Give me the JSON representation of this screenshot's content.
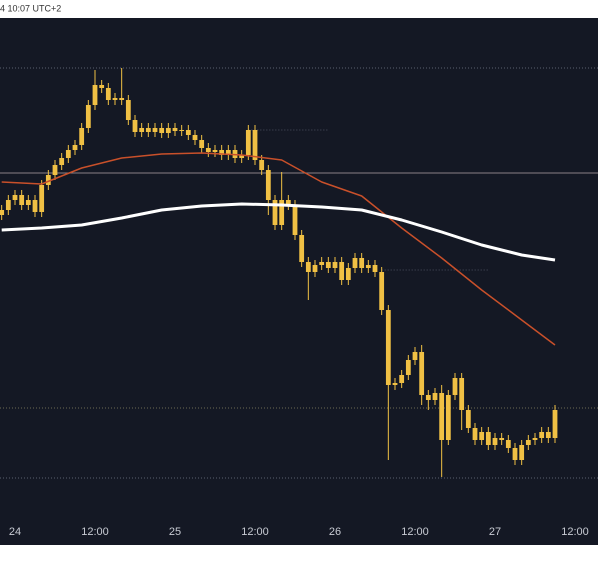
{
  "chart_data": {
    "type": "candlestick",
    "header": "4 10:07 UTC+2",
    "xlim": [
      -2.25,
      87.75
    ],
    "ylim": [
      0,
      99.4
    ],
    "xticks": [
      {
        "value": 0,
        "label": "24"
      },
      {
        "value": 12,
        "label": "12:00"
      },
      {
        "value": 24,
        "label": "25"
      },
      {
        "value": 36,
        "label": "12:00"
      },
      {
        "value": 48,
        "label": "26"
      },
      {
        "value": 60,
        "label": "12:00"
      },
      {
        "value": 72,
        "label": "27"
      },
      {
        "value": 84,
        "label": "12:00"
      }
    ],
    "color": "#f0c044",
    "x": [
      -2,
      -1,
      0,
      1,
      2,
      3,
      4,
      5,
      6,
      7,
      8,
      9,
      10,
      11,
      12,
      13,
      14,
      15,
      16,
      17,
      18,
      19,
      20,
      21,
      22,
      23,
      24,
      25,
      26,
      27,
      28,
      29,
      30,
      31,
      32,
      33,
      34,
      35,
      36,
      37,
      38,
      39,
      40,
      41,
      42,
      43,
      44,
      45,
      46,
      47,
      48,
      49,
      50,
      51,
      52,
      53,
      54,
      55,
      56,
      57,
      58,
      59,
      60,
      61,
      62,
      63,
      64,
      65,
      66,
      67,
      68,
      69,
      70,
      71,
      72,
      73,
      74,
      75,
      76,
      77,
      78,
      79,
      80,
      81
    ],
    "open": [
      60,
      61,
      63,
      64,
      62,
      63,
      60.6,
      66,
      68,
      70,
      71.4,
      73,
      74,
      77.4,
      82,
      86,
      85.4,
      83,
      83.4,
      83,
      79,
      76.6,
      77.4,
      76.6,
      77.4,
      76.4,
      77.4,
      76.8,
      77,
      76,
      75,
      73.4,
      72.6,
      73,
      72,
      73,
      71.4,
      72,
      77,
      71,
      69,
      63,
      58,
      63,
      62,
      56,
      50.6,
      48.6,
      50,
      50.6,
      49.4,
      50.6,
      47,
      49.4,
      51.4,
      49.4,
      50,
      48.6,
      41,
      26,
      26.4,
      28,
      31,
      32.6,
      24,
      23,
      24.4,
      15,
      24,
      27.4,
      21,
      17.4,
      15,
      16.6,
      14,
      15.4,
      15,
      13.4,
      11,
      14,
      15,
      15.4,
      16.6,
      15.4
    ],
    "high": [
      62,
      64,
      65,
      65,
      64,
      64,
      67,
      69,
      71,
      72.4,
      74,
      75,
      78.4,
      83,
      89,
      87,
      86.4,
      84.4,
      89.4,
      84,
      80,
      78.4,
      78.4,
      78.4,
      78.4,
      78.4,
      78.4,
      78,
      78,
      77,
      76,
      74.4,
      74,
      74,
      74,
      74,
      73,
      78,
      78,
      72,
      70,
      64,
      68.6,
      64,
      63,
      57,
      51.6,
      51,
      51.6,
      51.6,
      51.6,
      51.6,
      50.4,
      52.4,
      52.4,
      51,
      51,
      49.6,
      42,
      27.4,
      29,
      32,
      33.6,
      34,
      25,
      25.4,
      26,
      25,
      28.4,
      28.4,
      22,
      18.4,
      17.6,
      17.6,
      16.4,
      16.4,
      16,
      14.4,
      15,
      16,
      16.4,
      17.6,
      17.6,
      22
    ],
    "low": [
      59,
      60,
      62,
      61,
      61,
      59.6,
      59.6,
      65,
      67,
      69,
      70.4,
      72,
      73,
      76.4,
      81,
      84.4,
      82,
      82,
      82,
      78,
      75.6,
      75.6,
      75.6,
      75.6,
      75.4,
      75.4,
      75.8,
      75.8,
      75,
      74,
      72.4,
      71.6,
      71.6,
      71,
      71,
      70.4,
      70.4,
      71,
      70,
      68,
      60,
      57,
      57,
      61,
      55,
      49.6,
      43,
      47.6,
      49,
      48.4,
      48.4,
      46,
      46,
      48.4,
      48.4,
      48.4,
      47.6,
      40,
      11,
      25,
      25.4,
      27,
      30,
      22,
      21,
      22,
      7.6,
      14,
      23,
      17,
      16.4,
      14,
      14,
      13,
      13,
      14,
      12.4,
      10,
      10,
      13,
      14,
      14.4,
      14.4,
      14.4
    ],
    "close": [
      61,
      63,
      64,
      62,
      63,
      60.6,
      66,
      68,
      70,
      71.4,
      73,
      74,
      77.4,
      82,
      86,
      85.4,
      83,
      83.4,
      83,
      79,
      76.6,
      77.4,
      76.6,
      77.4,
      76.4,
      77.4,
      76.8,
      77,
      76,
      75,
      73.4,
      72.6,
      73,
      72,
      73,
      71.4,
      72,
      77,
      71,
      69,
      63,
      58,
      63,
      62,
      56,
      50.6,
      48.6,
      50,
      50.6,
      49.4,
      50.6,
      47,
      49.4,
      51.4,
      49.4,
      50,
      48.6,
      41,
      26,
      26.4,
      28,
      31,
      32.6,
      24,
      23,
      24.4,
      15,
      24,
      27.4,
      21,
      17.4,
      15,
      16.6,
      14,
      15.4,
      15,
      13.4,
      11,
      14,
      15,
      15.4,
      16.6,
      15.4,
      21
    ],
    "averages": [
      {
        "color": "#c9502a",
        "width": 1.5,
        "x": [
          -2,
          4,
          10,
          16,
          22,
          28,
          34,
          40,
          46,
          52,
          58,
          64,
          70,
          76,
          81
        ],
        "values": [
          66.6,
          66.2,
          69.4,
          71.4,
          72.2,
          72.4,
          72,
          71,
          66.6,
          63.8,
          57.4,
          51.4,
          45,
          39,
          34
        ]
      },
      {
        "color": "#ffffff",
        "width": 3,
        "x": [
          -2,
          4,
          10,
          16,
          22,
          28,
          34,
          40,
          46,
          52,
          58,
          64,
          70,
          76,
          81
        ],
        "values": [
          57,
          57.4,
          58,
          59.4,
          61,
          61.8,
          62.2,
          62,
          61.6,
          61,
          59,
          56.6,
          54,
          52,
          51
        ]
      }
    ],
    "levels": [
      {
        "value": 68.4,
        "color": "#8a7f86",
        "dash": false
      },
      {
        "value": 89.4,
        "color": "#5a5f6e",
        "dash": true
      },
      {
        "value": 21.4,
        "color": "#6d6a55",
        "dash": true
      },
      {
        "value": 7.4,
        "color": "#5a5f6e",
        "dash": true
      }
    ],
    "segments": [
      {
        "value": 77,
        "x": [
          35,
          47
        ]
      },
      {
        "value": 49,
        "x": [
          55,
          71
        ]
      }
    ]
  }
}
